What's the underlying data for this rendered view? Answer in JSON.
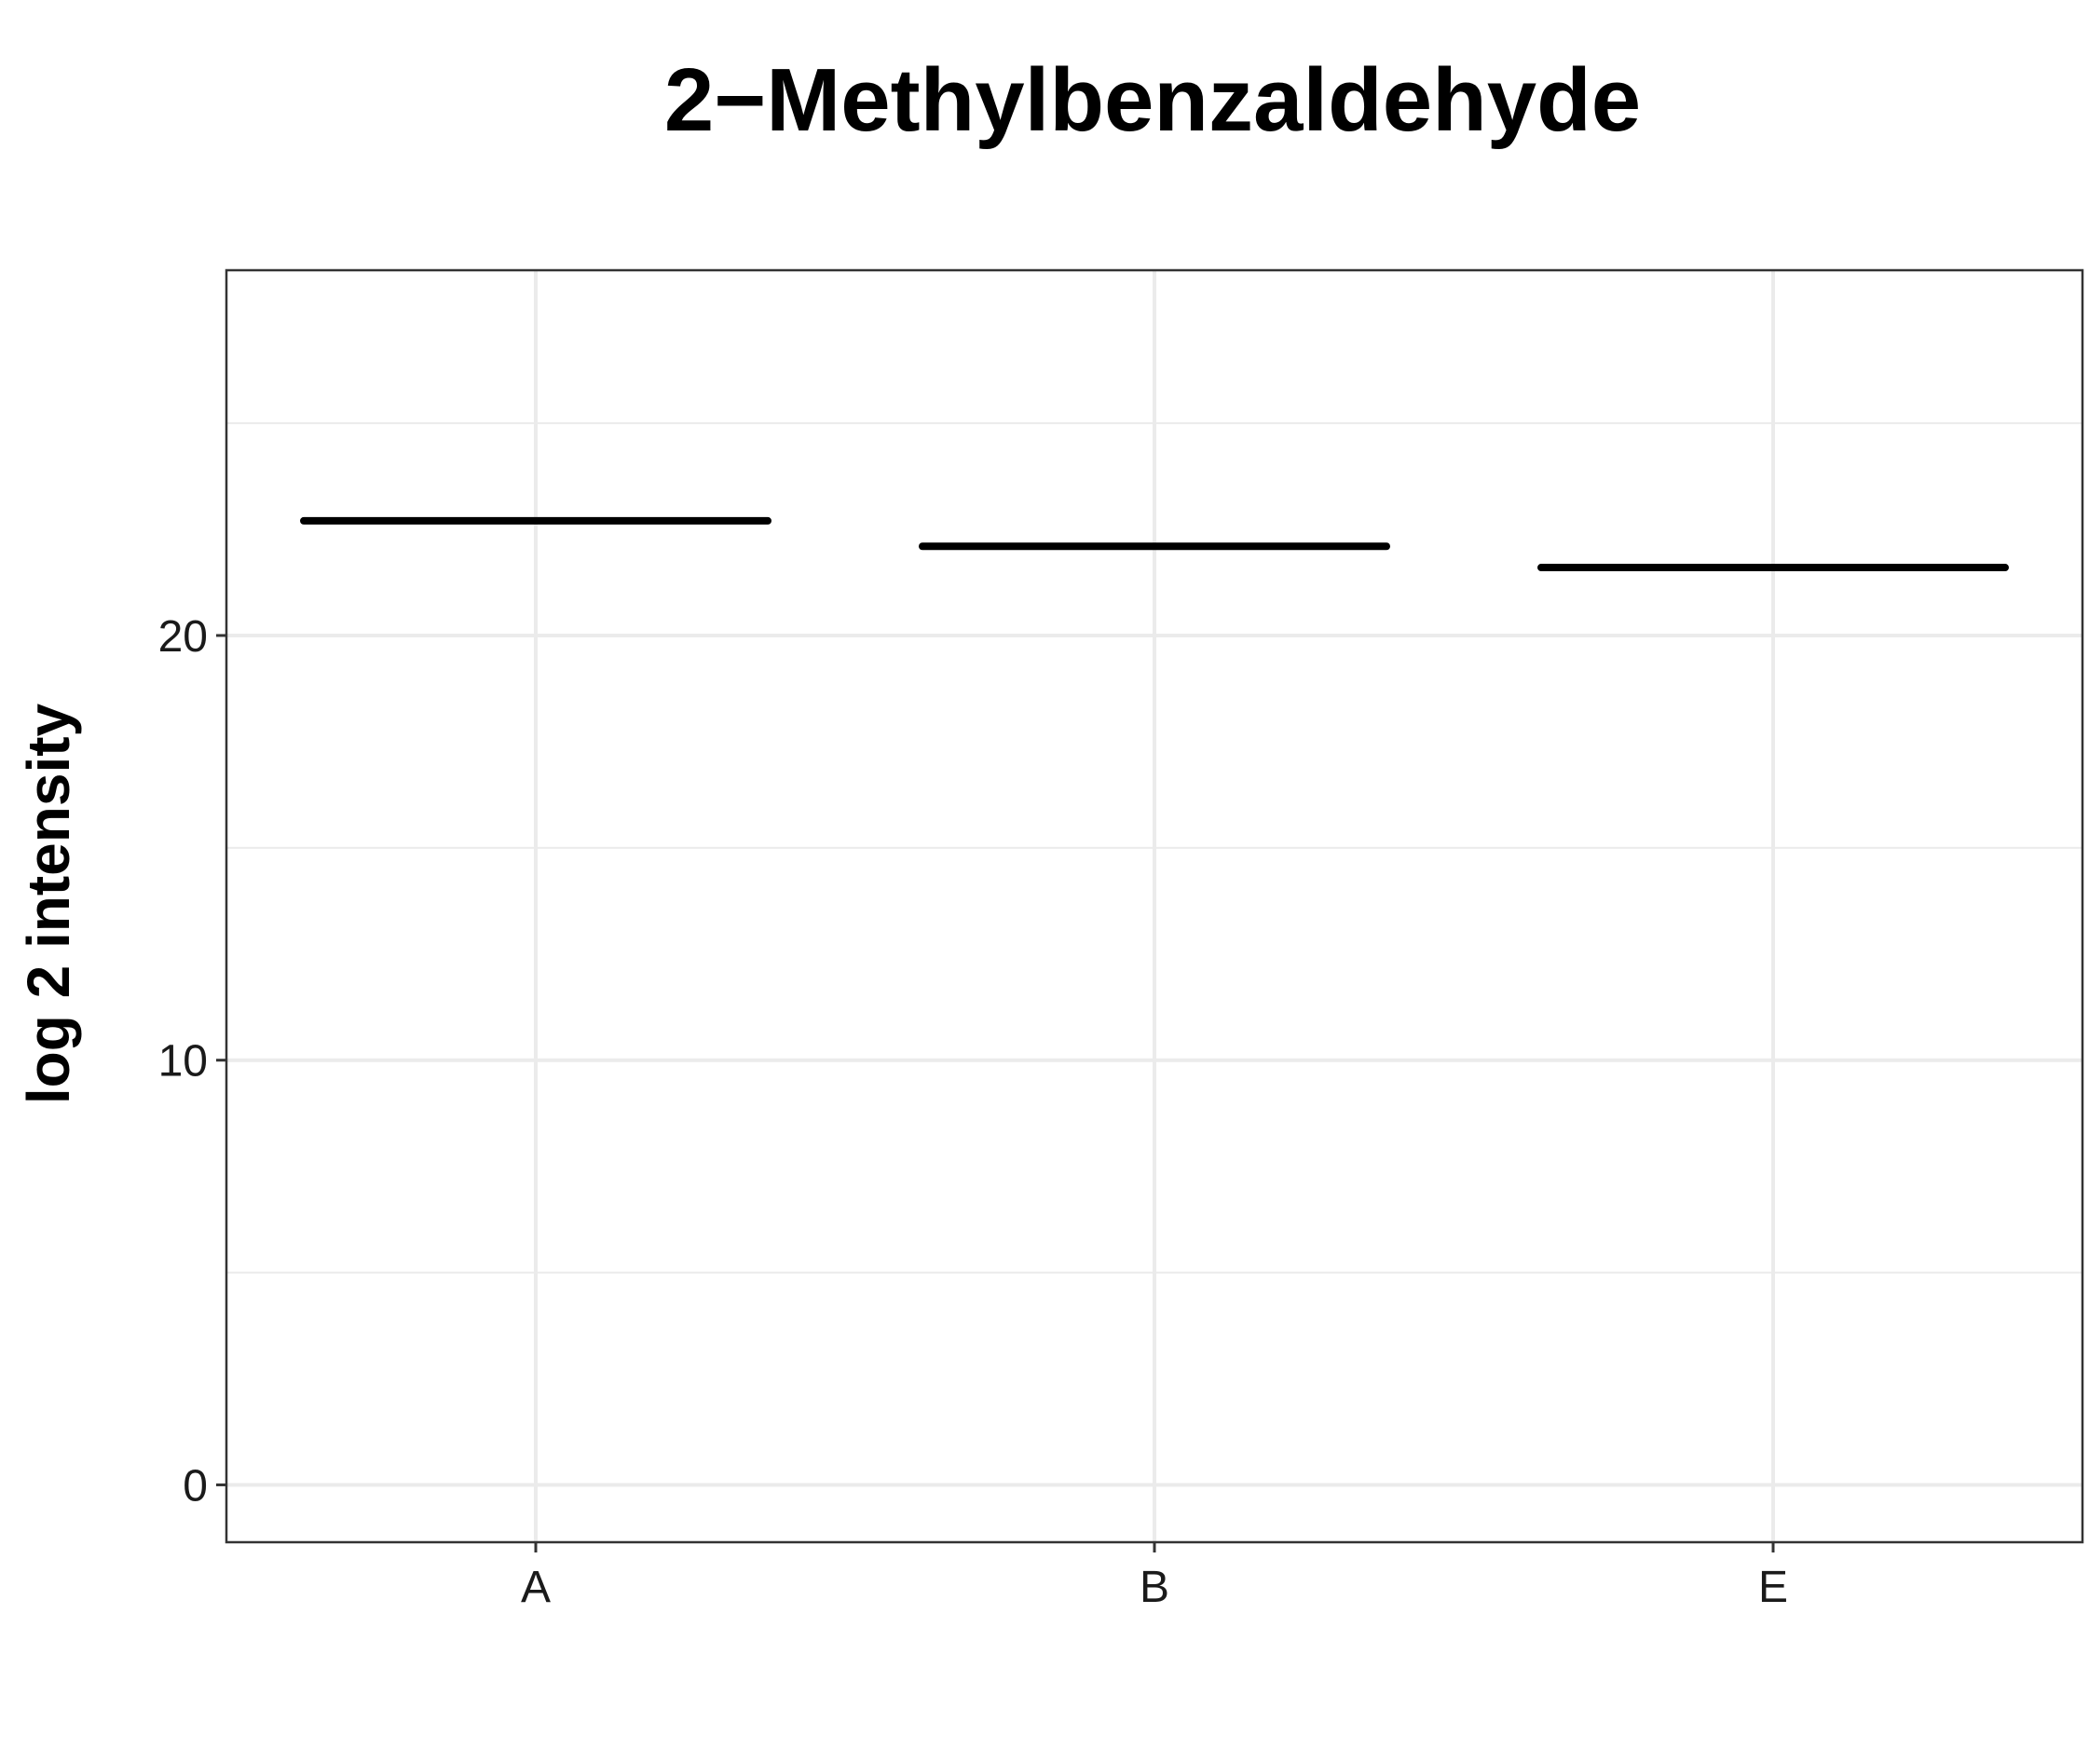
{
  "chart_data": {
    "type": "box",
    "title": "2−Methylbenzaldehyde",
    "xlabel": "",
    "ylabel": "log 2 intensity",
    "categories": [
      "A",
      "B",
      "E"
    ],
    "values": [
      22.7,
      22.1,
      21.6
    ],
    "ylim": [
      -1.35,
      28.6
    ],
    "yticks": [
      {
        "value": 0,
        "label": "0"
      },
      {
        "value": 10,
        "label": "10"
      },
      {
        "value": 20,
        "label": "20"
      }
    ],
    "yminor": [
      5,
      15,
      25
    ],
    "grid": true,
    "legend": "none",
    "colors": {
      "median": "#000000",
      "grid": "#ebebeb",
      "border": "#333333",
      "background": "#ffffff"
    }
  }
}
